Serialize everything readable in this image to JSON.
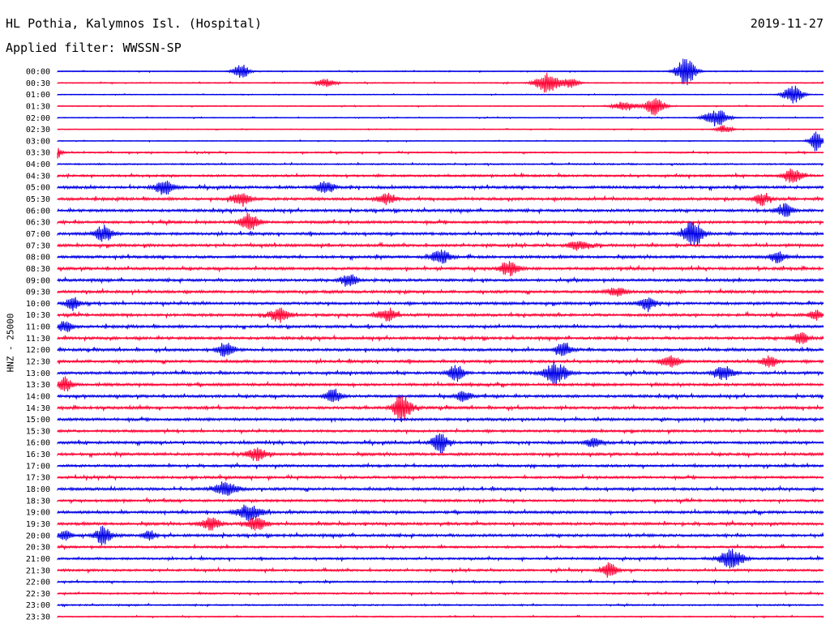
{
  "header": {
    "station": "HL Pothia, Kalymnos Isl. (Hospital)",
    "date": "2019-11-27",
    "filter": "Applied filter: WWSSN-SP"
  },
  "chart_data": {
    "type": "line",
    "title": "HL Pothia, Kalymnos Isl. (Hospital)",
    "subtitle": "Applied filter: WWSSN-SP",
    "ylabel": "HNZ - 25000",
    "xlabel": "",
    "grid": false,
    "legend": "none",
    "colors": {
      "even_row": "#0000e6",
      "odd_row": "#ff0033"
    },
    "rows": [
      {
        "label": "00:00",
        "level": 0.2,
        "events": [
          [
            0.24,
            0.9,
            0.01
          ],
          [
            0.82,
            1.9,
            0.012
          ]
        ]
      },
      {
        "label": "00:30",
        "level": 0.22,
        "events": [
          [
            0.35,
            0.5,
            0.012
          ],
          [
            0.64,
            1.3,
            0.015
          ],
          [
            0.67,
            0.6,
            0.01
          ]
        ]
      },
      {
        "label": "01:00",
        "level": 0.18,
        "events": [
          [
            0.96,
            1.2,
            0.012
          ]
        ]
      },
      {
        "label": "01:30",
        "level": 0.2,
        "events": [
          [
            0.74,
            0.6,
            0.015
          ],
          [
            0.78,
            1.2,
            0.012
          ]
        ]
      },
      {
        "label": "02:00",
        "level": 0.18,
        "events": [
          [
            0.86,
            1.1,
            0.015
          ]
        ]
      },
      {
        "label": "02:30",
        "level": 0.15,
        "events": [
          [
            0.87,
            0.5,
            0.01
          ]
        ]
      },
      {
        "label": "03:00",
        "level": 0.18,
        "events": [
          [
            0.99,
            1.3,
            0.008
          ]
        ]
      },
      {
        "label": "03:30",
        "level": 0.3,
        "events": [
          [
            0.0,
            0.7,
            0.006
          ]
        ]
      },
      {
        "label": "04:00",
        "level": 0.3,
        "events": []
      },
      {
        "label": "04:30",
        "level": 0.45,
        "events": [
          [
            0.96,
            0.9,
            0.012
          ]
        ]
      },
      {
        "label": "05:00",
        "level": 0.55,
        "events": [
          [
            0.14,
            0.9,
            0.012
          ],
          [
            0.35,
            0.7,
            0.012
          ]
        ]
      },
      {
        "label": "05:30",
        "level": 0.55,
        "events": [
          [
            0.24,
            0.8,
            0.012
          ],
          [
            0.43,
            0.7,
            0.012
          ],
          [
            0.92,
            0.8,
            0.01
          ]
        ]
      },
      {
        "label": "06:00",
        "level": 0.55,
        "events": [
          [
            0.95,
            0.8,
            0.01
          ]
        ]
      },
      {
        "label": "06:30",
        "level": 0.55,
        "events": [
          [
            0.25,
            1.1,
            0.012
          ]
        ]
      },
      {
        "label": "07:00",
        "level": 0.55,
        "events": [
          [
            0.06,
            1.0,
            0.012
          ],
          [
            0.83,
            1.8,
            0.012
          ]
        ]
      },
      {
        "label": "07:30",
        "level": 0.55,
        "events": [
          [
            0.68,
            0.6,
            0.012
          ]
        ]
      },
      {
        "label": "08:00",
        "level": 0.55,
        "events": [
          [
            0.5,
            0.9,
            0.012
          ],
          [
            0.94,
            0.7,
            0.01
          ]
        ]
      },
      {
        "label": "08:30",
        "level": 0.55,
        "events": [
          [
            0.59,
            0.9,
            0.012
          ]
        ]
      },
      {
        "label": "09:00",
        "level": 0.55,
        "events": [
          [
            0.38,
            0.9,
            0.01
          ]
        ]
      },
      {
        "label": "09:30",
        "level": 0.55,
        "events": [
          [
            0.73,
            0.6,
            0.012
          ]
        ]
      },
      {
        "label": "10:00",
        "level": 0.55,
        "events": [
          [
            0.02,
            0.9,
            0.008
          ],
          [
            0.77,
            0.9,
            0.01
          ]
        ]
      },
      {
        "label": "10:30",
        "level": 0.55,
        "events": [
          [
            0.29,
            0.9,
            0.012
          ],
          [
            0.43,
            0.8,
            0.012
          ],
          [
            0.99,
            0.7,
            0.008
          ]
        ]
      },
      {
        "label": "11:00",
        "level": 0.55,
        "events": [
          [
            0.01,
            0.8,
            0.008
          ]
        ]
      },
      {
        "label": "11:30",
        "level": 0.55,
        "events": [
          [
            0.97,
            0.8,
            0.01
          ]
        ]
      },
      {
        "label": "12:00",
        "level": 0.55,
        "events": [
          [
            0.22,
            1.1,
            0.01
          ],
          [
            0.66,
            1.0,
            0.01
          ]
        ]
      },
      {
        "label": "12:30",
        "level": 0.55,
        "events": [
          [
            0.8,
            0.8,
            0.012
          ],
          [
            0.93,
            0.7,
            0.01
          ]
        ]
      },
      {
        "label": "13:00",
        "level": 0.55,
        "events": [
          [
            0.52,
            1.0,
            0.01
          ],
          [
            0.65,
            1.4,
            0.015
          ],
          [
            0.87,
            0.9,
            0.012
          ]
        ]
      },
      {
        "label": "13:30",
        "level": 0.55,
        "events": [
          [
            0.01,
            1.0,
            0.008
          ]
        ]
      },
      {
        "label": "14:00",
        "level": 0.55,
        "events": [
          [
            0.36,
            0.9,
            0.01
          ],
          [
            0.53,
            0.7,
            0.01
          ]
        ]
      },
      {
        "label": "14:30",
        "level": 0.55,
        "events": [
          [
            0.45,
            1.7,
            0.012
          ]
        ]
      },
      {
        "label": "15:00",
        "level": 0.55,
        "events": []
      },
      {
        "label": "15:30",
        "level": 0.5,
        "events": []
      },
      {
        "label": "16:00",
        "level": 0.55,
        "events": [
          [
            0.5,
            1.3,
            0.01
          ],
          [
            0.7,
            0.6,
            0.01
          ]
        ]
      },
      {
        "label": "16:30",
        "level": 0.55,
        "events": [
          [
            0.26,
            0.8,
            0.012
          ]
        ]
      },
      {
        "label": "17:00",
        "level": 0.5,
        "events": []
      },
      {
        "label": "17:30",
        "level": 0.5,
        "events": []
      },
      {
        "label": "18:00",
        "level": 0.55,
        "events": [
          [
            0.22,
            0.9,
            0.015
          ]
        ]
      },
      {
        "label": "18:30",
        "level": 0.5,
        "events": []
      },
      {
        "label": "19:00",
        "level": 0.55,
        "events": [
          [
            0.25,
            1.0,
            0.015
          ]
        ]
      },
      {
        "label": "19:30",
        "level": 0.55,
        "events": [
          [
            0.2,
            0.8,
            0.012
          ],
          [
            0.26,
            0.9,
            0.012
          ]
        ]
      },
      {
        "label": "20:00",
        "level": 0.55,
        "events": [
          [
            0.01,
            0.7,
            0.008
          ],
          [
            0.06,
            1.2,
            0.01
          ],
          [
            0.12,
            0.6,
            0.008
          ]
        ]
      },
      {
        "label": "20:30",
        "level": 0.45,
        "events": []
      },
      {
        "label": "21:00",
        "level": 0.45,
        "events": [
          [
            0.88,
            1.2,
            0.015
          ]
        ]
      },
      {
        "label": "21:30",
        "level": 0.45,
        "events": [
          [
            0.72,
            0.9,
            0.01
          ]
        ]
      },
      {
        "label": "22:00",
        "level": 0.35,
        "events": []
      },
      {
        "label": "22:30",
        "level": 0.35,
        "events": []
      },
      {
        "label": "23:00",
        "level": 0.3,
        "events": []
      },
      {
        "label": "23:30",
        "level": 0.25,
        "events": []
      }
    ]
  }
}
